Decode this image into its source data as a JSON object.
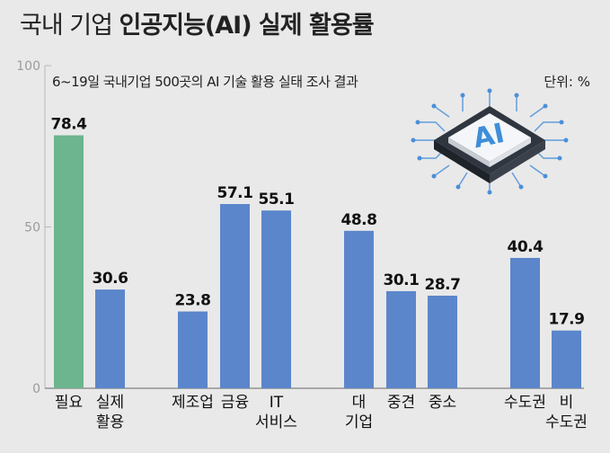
{
  "title": {
    "light": "국내 기업",
    "bold": "인공지능(AI) 실제 활용률"
  },
  "subtitle": "6~19일 국내기업 500곳의 AI 기술 활용 실태 조사 결과",
  "unit": "단위: %",
  "colors": {
    "green": "#6db58e",
    "blue": "#5b86cb",
    "grid": "#b9b9b9",
    "background": "#e9e9e9"
  },
  "illustration": {
    "chip_text": "AI",
    "icon": "ai-chip-icon"
  },
  "chart_data": {
    "type": "bar",
    "ylim": [
      0,
      100
    ],
    "yticks": [
      0,
      50,
      100
    ],
    "grid": false,
    "categories": [
      {
        "label": [
          "필요"
        ],
        "value": 78.4,
        "color": "green"
      },
      {
        "label": [
          "실제",
          "활용"
        ],
        "value": 30.6,
        "color": "blue"
      },
      {
        "label": [
          "제조업"
        ],
        "value": 23.8,
        "color": "blue"
      },
      {
        "label": [
          "금융"
        ],
        "value": 57.1,
        "color": "blue"
      },
      {
        "label": [
          "IT",
          "서비스"
        ],
        "value": 55.1,
        "color": "blue"
      },
      {
        "label": [
          "대",
          "기업"
        ],
        "value": 48.8,
        "color": "blue"
      },
      {
        "label": [
          "중견"
        ],
        "value": 30.1,
        "color": "blue"
      },
      {
        "label": [
          "중소"
        ],
        "value": 28.7,
        "color": "blue"
      },
      {
        "label": [
          "수도권"
        ],
        "value": 40.4,
        "color": "blue"
      },
      {
        "label": [
          "비",
          "수도권"
        ],
        "value": 17.9,
        "color": "blue"
      }
    ]
  }
}
